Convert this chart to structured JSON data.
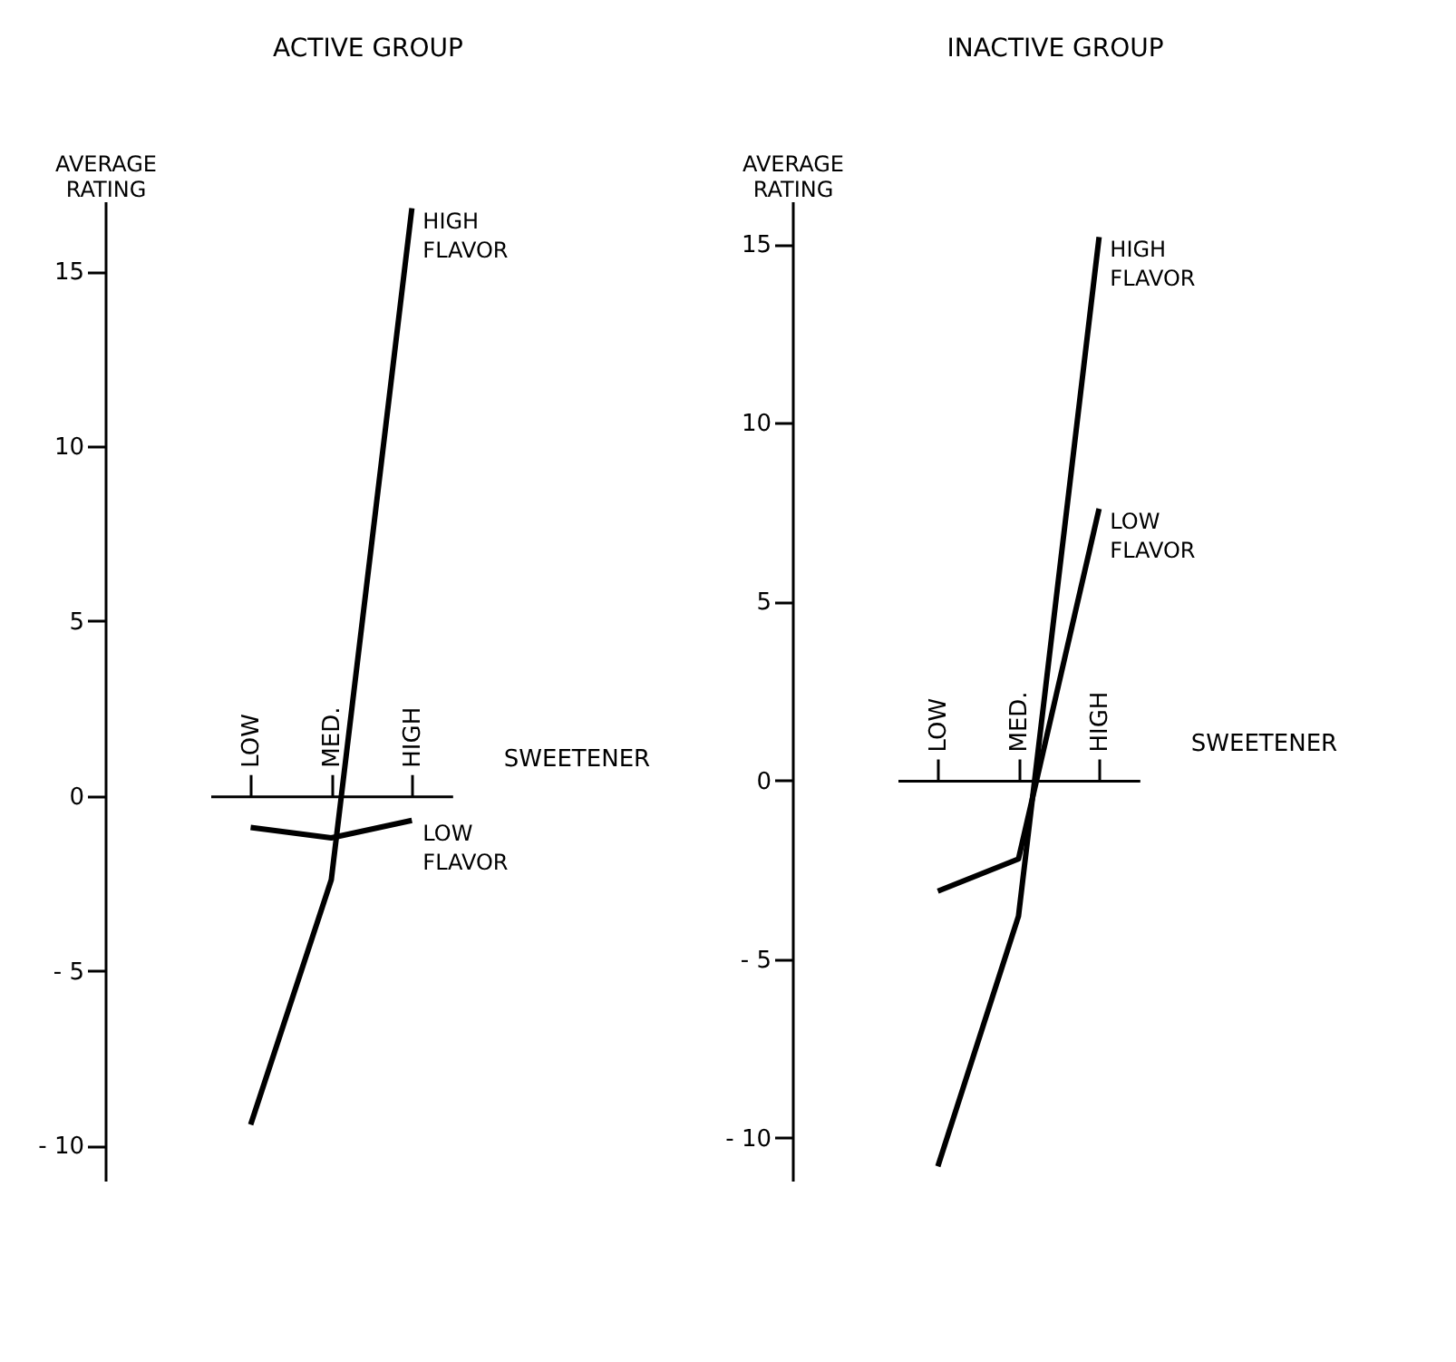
{
  "chart_data": [
    {
      "type": "line",
      "title": "ACTIVE GROUP",
      "ylabel": "AVERAGE RATING",
      "xlabel": "SWEETENER",
      "categories": [
        "LOW",
        "MED.",
        "HIGH"
      ],
      "ylim": [
        -11,
        17
      ],
      "yticks": [
        -10,
        -5,
        0,
        5,
        10,
        15
      ],
      "grid": false,
      "legend": false,
      "marker": "none",
      "line_style": "solid",
      "series": [
        {
          "name": "HIGH FLAVOR",
          "color": "#000000",
          "values": [
            -9.4,
            -2.4,
            16.8
          ]
        },
        {
          "name": "LOW FLAVOR",
          "color": "#000000",
          "values": [
            -0.9,
            -1.2,
            -0.7
          ]
        }
      ]
    },
    {
      "type": "line",
      "title": "INACTIVE GROUP",
      "ylabel": "AVERAGE RATING",
      "xlabel": "SWEETENER",
      "categories": [
        "LOW",
        "MED.",
        "HIGH"
      ],
      "ylim": [
        -11.2,
        16.2
      ],
      "yticks": [
        -10,
        -5,
        0,
        5,
        10,
        15
      ],
      "grid": false,
      "legend": false,
      "marker": "none",
      "line_style": "solid",
      "series": [
        {
          "name": "HIGH FLAVOR",
          "color": "#000000",
          "values": [
            -10.8,
            -3.8,
            15.2
          ]
        },
        {
          "name": "LOW FLAVOR",
          "color": "#000000",
          "values": [
            -3.1,
            -2.2,
            7.6
          ]
        }
      ]
    }
  ]
}
